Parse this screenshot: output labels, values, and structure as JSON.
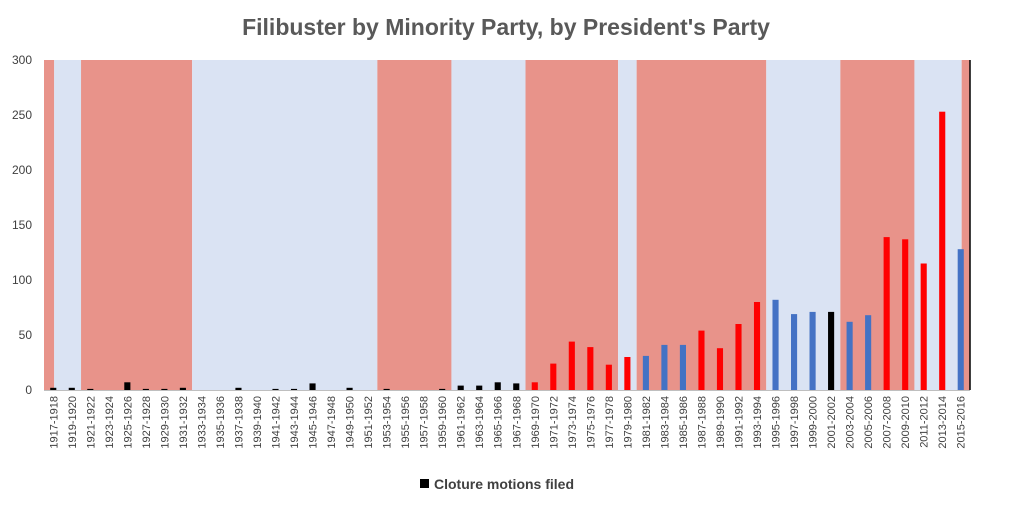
{
  "chart_data": {
    "type": "bar",
    "title": "Filibuster by Minority Party, by President's Party",
    "xlabel": "",
    "ylabel": "",
    "ylim": [
      0,
      300
    ],
    "yticks": [
      0,
      50,
      100,
      150,
      200,
      250,
      300
    ],
    "grid": false,
    "legend_position": "bottom",
    "legend": [
      {
        "label": "Cloture motions filed",
        "color": "#000000"
      }
    ],
    "colors": {
      "republican_band": "#e8938a",
      "democrat_band": "#dae3f3",
      "filed_by_republicans": "#ff0000",
      "filed_by_democrats": "#4472c4",
      "filed_before_partisan_split": "#000000"
    },
    "categories": [
      "1917-1918",
      "1919-1920",
      "1921-1922",
      "1923-1924",
      "1925-1926",
      "1927-1928",
      "1929-1930",
      "1931-1932",
      "1933-1934",
      "1935-1936",
      "1937-1938",
      "1939-1940",
      "1941-1942",
      "1943-1944",
      "1945-1946",
      "1947-1948",
      "1949-1950",
      "1951-1952",
      "1953-1954",
      "1955-1956",
      "1957-1958",
      "1959-1960",
      "1961-1962",
      "1963-1964",
      "1965-1966",
      "1967-1968",
      "1969-1970",
      "1971-1972",
      "1973-1974",
      "1975-1976",
      "1977-1978",
      "1979-1980",
      "1981-1982",
      "1983-1984",
      "1985-1986",
      "1987-1988",
      "1989-1990",
      "1991-1992",
      "1993-1994",
      "1995-1996",
      "1997-1998",
      "1999-2000",
      "2001-2002",
      "2003-2004",
      "2005-2006",
      "2007-2008",
      "2009-2010",
      "2011-2012",
      "2013-2014",
      "2015-2016"
    ],
    "values": [
      2,
      2,
      1,
      0,
      7,
      1,
      1,
      2,
      0,
      0,
      2,
      0,
      1,
      1,
      6,
      0,
      2,
      0,
      1,
      0,
      0,
      1,
      4,
      4,
      7,
      6,
      7,
      24,
      44,
      39,
      23,
      30,
      31,
      41,
      41,
      54,
      38,
      60,
      80,
      82,
      69,
      71,
      71,
      62,
      68,
      139,
      137,
      115,
      253,
      128
    ],
    "bar_colors": [
      "#000000",
      "#000000",
      "#000000",
      "#000000",
      "#000000",
      "#000000",
      "#000000",
      "#000000",
      "#000000",
      "#000000",
      "#000000",
      "#000000",
      "#000000",
      "#000000",
      "#000000",
      "#000000",
      "#000000",
      "#000000",
      "#000000",
      "#000000",
      "#000000",
      "#000000",
      "#000000",
      "#000000",
      "#000000",
      "#000000",
      "#ff0000",
      "#ff0000",
      "#ff0000",
      "#ff0000",
      "#ff0000",
      "#ff0000",
      "#4472c4",
      "#4472c4",
      "#4472c4",
      "#ff0000",
      "#ff0000",
      "#ff0000",
      "#ff0000",
      "#4472c4",
      "#4472c4",
      "#4472c4",
      "#000000",
      "#4472c4",
      "#4472c4",
      "#ff0000",
      "#ff0000",
      "#ff0000",
      "#ff0000",
      "#4472c4"
    ],
    "background_bands": [
      {
        "from": "1917-1918",
        "to": "1917-1918",
        "party": "republican"
      },
      {
        "from": "1919-1920",
        "to": "1919-1920",
        "party": "democrat"
      },
      {
        "from": "1921-1922",
        "to": "1931-1932",
        "party": "republican"
      },
      {
        "from": "1933-1934",
        "to": "1951-1952",
        "party": "democrat"
      },
      {
        "from": "1953-1954",
        "to": "1959-1960",
        "party": "republican"
      },
      {
        "from": "1961-1962",
        "to": "1967-1968",
        "party": "democrat"
      },
      {
        "from": "1969-1970",
        "to": "1977-1978",
        "party": "republican"
      },
      {
        "from": "1979-1980",
        "to": "1979-1980",
        "party": "democrat"
      },
      {
        "from": "1981-1982",
        "to": "1993-1994",
        "party": "republican"
      },
      {
        "from": "1995-1996",
        "to": "2001-2002",
        "party": "democrat"
      },
      {
        "from": "2003-2004",
        "to": "2009-2010",
        "party": "republican"
      },
      {
        "from": "2011-2012",
        "to": "2015-2016",
        "party": "democrat"
      },
      {
        "from": "2015-2016",
        "to": "2015-2016",
        "party": "republican"
      }
    ]
  }
}
